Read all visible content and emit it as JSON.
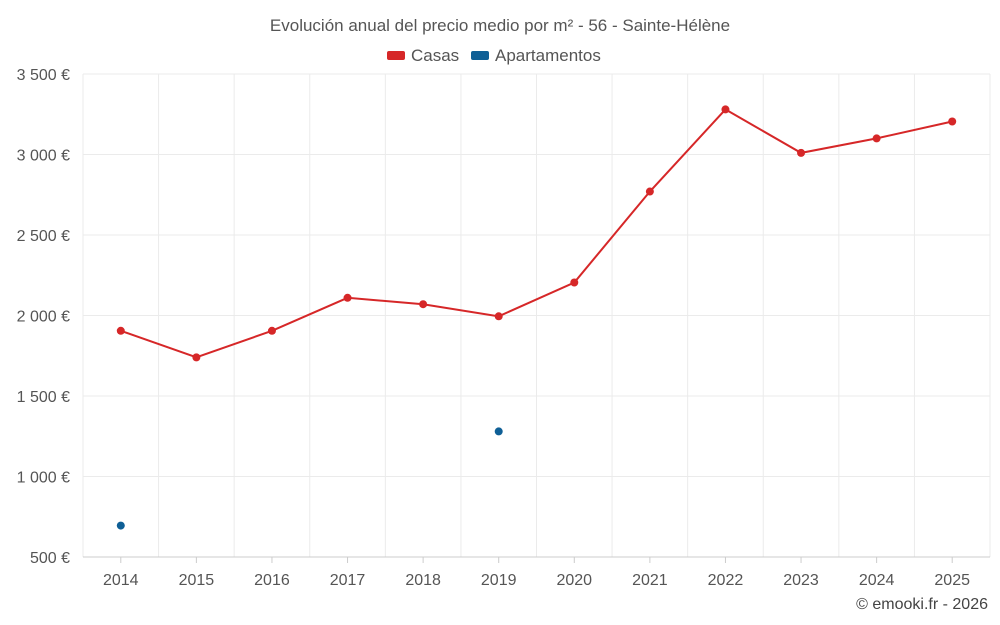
{
  "chart_data": {
    "type": "line",
    "title": "Evolución anual del precio medio por m² - 56 - Sainte-Hélène",
    "categories": [
      "2014",
      "2015",
      "2016",
      "2017",
      "2018",
      "2019",
      "2020",
      "2021",
      "2022",
      "2023",
      "2024",
      "2025"
    ],
    "series": [
      {
        "name": "Casas",
        "color": "#d62728",
        "values": [
          1905,
          1740,
          1905,
          2110,
          2070,
          1995,
          2205,
          2770,
          3280,
          3010,
          3100,
          3205
        ]
      },
      {
        "name": "Apartamentos",
        "color": "#0f5f96",
        "values": [
          695,
          null,
          null,
          null,
          null,
          1280,
          null,
          null,
          null,
          null,
          null,
          null
        ]
      }
    ],
    "y_ticks": [
      "500 €",
      "1 000 €",
      "1 500 €",
      "2 000 €",
      "2 500 €",
      "3 000 €",
      "3 500 €"
    ],
    "ylim": [
      500,
      3500
    ],
    "xlabel": "",
    "ylabel": "",
    "grid": true,
    "legend_position": "top-center",
    "credit": "© emooki.fr - 2026"
  }
}
